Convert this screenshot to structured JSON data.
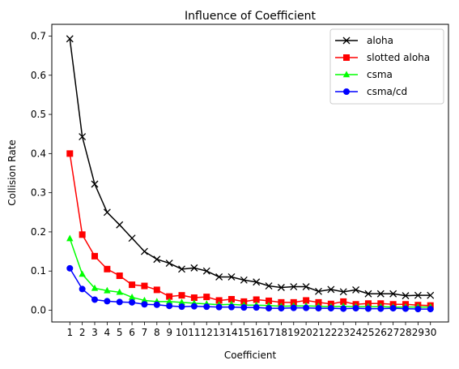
{
  "chart_data": {
    "type": "line",
    "title": "Influence of Coefficient",
    "xlabel": "Coefficient",
    "ylabel": "Collision Rate",
    "x": [
      1,
      2,
      3,
      4,
      5,
      6,
      7,
      8,
      9,
      10,
      11,
      12,
      13,
      14,
      15,
      16,
      17,
      18,
      19,
      20,
      21,
      22,
      23,
      24,
      25,
      26,
      27,
      28,
      29,
      30
    ],
    "xlim": [
      -0.45,
      31.45
    ],
    "ylim": [
      -0.03,
      0.73
    ],
    "yticks": [
      0.0,
      0.1,
      0.2,
      0.3,
      0.4,
      0.5,
      0.6,
      0.7
    ],
    "ytick_labels": [
      "0.0",
      "0.1",
      "0.2",
      "0.3",
      "0.4",
      "0.5",
      "0.6",
      "0.7"
    ],
    "grid": false,
    "legend_position": "top-right",
    "series": [
      {
        "name": "aloha",
        "color": "#000000",
        "marker": "x",
        "values": [
          0.693,
          0.443,
          0.322,
          0.25,
          0.218,
          0.184,
          0.15,
          0.13,
          0.12,
          0.105,
          0.108,
          0.1,
          0.085,
          0.085,
          0.077,
          0.072,
          0.062,
          0.058,
          0.06,
          0.06,
          0.048,
          0.053,
          0.047,
          0.052,
          0.042,
          0.042,
          0.042,
          0.037,
          0.038,
          0.038
        ]
      },
      {
        "name": "slotted aloha",
        "color": "#ff0000",
        "marker": "square",
        "values": [
          0.4,
          0.193,
          0.138,
          0.105,
          0.088,
          0.065,
          0.062,
          0.052,
          0.035,
          0.038,
          0.032,
          0.034,
          0.025,
          0.028,
          0.022,
          0.027,
          0.024,
          0.02,
          0.02,
          0.025,
          0.02,
          0.016,
          0.022,
          0.015,
          0.017,
          0.017,
          0.015,
          0.015,
          0.013,
          0.012
        ]
      },
      {
        "name": "csma",
        "color": "#00ff00",
        "marker": "triangle",
        "values": [
          0.183,
          0.092,
          0.056,
          0.05,
          0.046,
          0.033,
          0.025,
          0.022,
          0.022,
          0.02,
          0.018,
          0.016,
          0.014,
          0.015,
          0.013,
          0.013,
          0.012,
          0.01,
          0.011,
          0.011,
          0.01,
          0.009,
          0.01,
          0.009,
          0.009,
          0.009,
          0.008,
          0.008,
          0.008,
          0.008
        ]
      },
      {
        "name": "csma/cd",
        "color": "#0000ff",
        "marker": "circle",
        "values": [
          0.107,
          0.054,
          0.027,
          0.023,
          0.021,
          0.02,
          0.015,
          0.014,
          0.011,
          0.009,
          0.01,
          0.009,
          0.008,
          0.008,
          0.007,
          0.007,
          0.005,
          0.005,
          0.006,
          0.006,
          0.005,
          0.005,
          0.004,
          0.005,
          0.004,
          0.004,
          0.005,
          0.004,
          0.003,
          0.003
        ]
      }
    ]
  }
}
